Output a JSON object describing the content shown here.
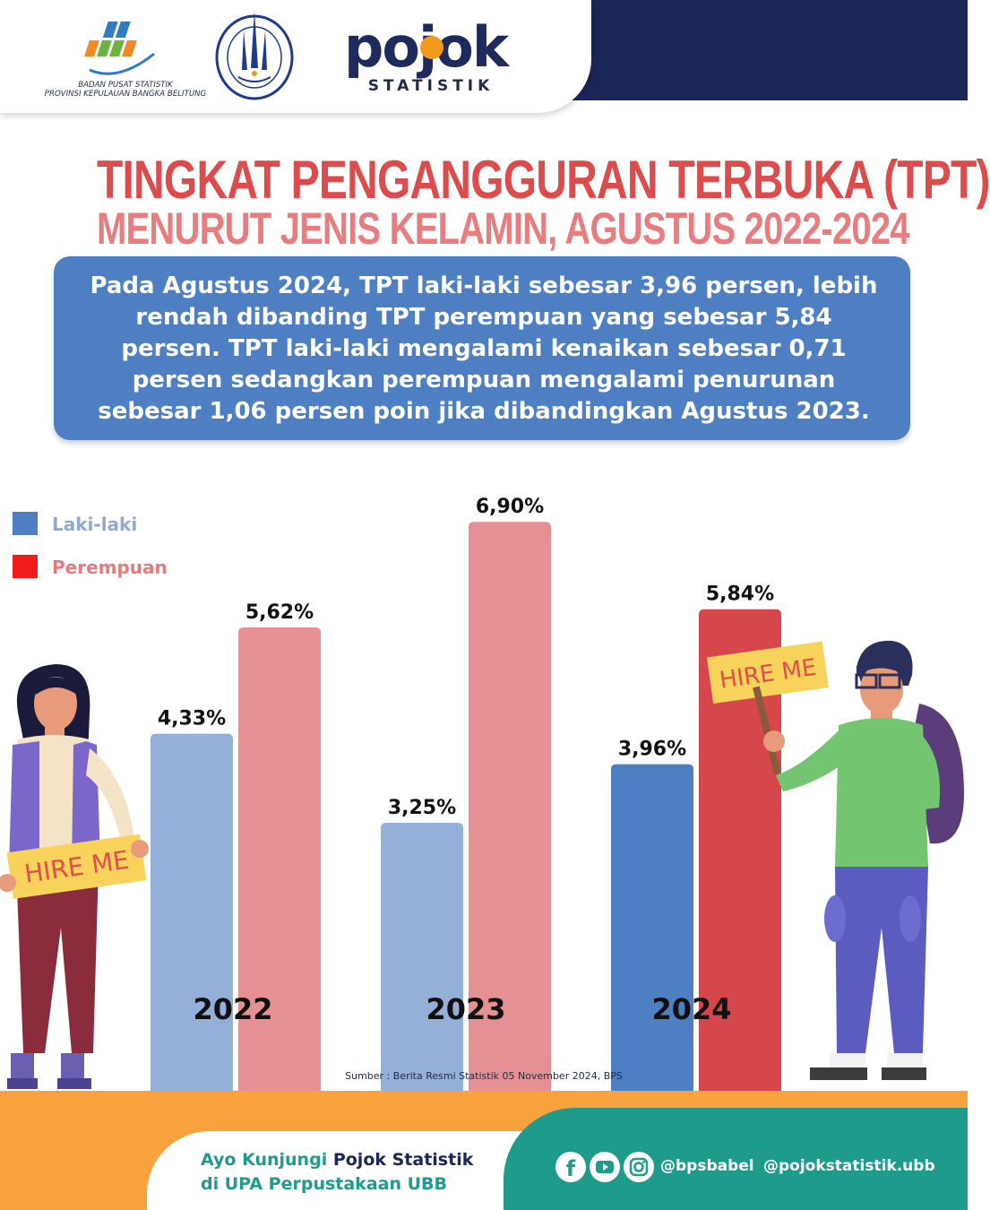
{
  "header": {
    "bps_caption_line1": "BADAN PUSAT STATISTIK",
    "bps_caption_line2": "PROVINSI KEPULAUAN BANGKA BELITUNG",
    "ubb_seal_text": "UNIVERSITAS BANGKA BELITUNG",
    "pojok_logo": "pojok",
    "pojok_sub": "STATISTIK"
  },
  "title": {
    "line1": "TINGKAT PENGANGGURAN TERBUKA (TPT)",
    "line2": "MENURUT JENIS KELAMIN, AGUSTUS 2022-2024"
  },
  "summary": {
    "line1": "Pada Agustus 2024, TPT laki-laki sebesar 3,96 persen, lebih",
    "line2": "rendah dibanding TPT perempuan yang sebesar 5,84",
    "line3": "persen. TPT laki-laki mengalami kenaikan sebesar 0,71",
    "line4": "persen sedangkan perempuan mengalami penurunan",
    "line5": "sebesar 1,06 persen poin jika dibandingkan Agustus 2023."
  },
  "legend": {
    "male": "Laki-laki",
    "female": "Perempuan"
  },
  "colors": {
    "male": "#95b0d8",
    "female": "#e59194",
    "male_highlight": "#4e7fc2",
    "female_highlight": "#d6474b",
    "legend_male_swatch": "#4e7fc2",
    "legend_female_swatch": "#f01b1b"
  },
  "signs": {
    "left": "HIRE ME",
    "right": "HIRE ME"
  },
  "chart_data": {
    "type": "bar",
    "categories": [
      "2022",
      "2023",
      "2024"
    ],
    "series": [
      {
        "name": "Laki-laki",
        "values": [
          4.33,
          3.25,
          3.96
        ],
        "labels": [
          "4,33%",
          "3,25%",
          "3,96%"
        ]
      },
      {
        "name": "Perempuan",
        "values": [
          5.62,
          6.9,
          5.84
        ],
        "labels": [
          "5,62%",
          "6,90%",
          "5,84%"
        ]
      }
    ],
    "highlight_category": "2024",
    "title": "TINGKAT PENGANGGURAN TERBUKA (TPT) MENURUT JENIS KELAMIN, AGUSTUS 2022-2024",
    "xlabel": "",
    "ylabel": "",
    "ylim": [
      0,
      7.5
    ],
    "legend": "top-left",
    "grid": false
  },
  "source": "Sumber : Berita Resmi Statistik 05 November 2024, BPS",
  "footer": {
    "visit_prefix": "Ayo Kunjungi ",
    "visit_highlight": "Pojok Statistik",
    "visit_line2": "di UPA Perpustakaan UBB",
    "handle1": "@bpsbabel",
    "handle2": "@pojokstatistik.ubb",
    "icons": [
      "facebook-icon",
      "youtube-icon",
      "instagram-icon"
    ]
  }
}
